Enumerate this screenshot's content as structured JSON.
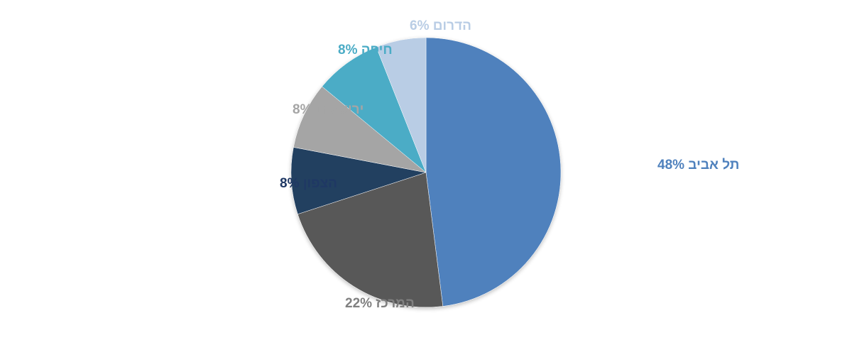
{
  "chart_data": {
    "type": "pie",
    "title": "",
    "slices": [
      {
        "label": "תל אביב",
        "percent_label": "48%",
        "value": 48,
        "color": "#4f81bd",
        "label_color": "#4f81bd"
      },
      {
        "label": "המרכז",
        "percent_label": "22%",
        "value": 22,
        "color": "#595959",
        "label_color": "#808080"
      },
      {
        "label": "הצפון",
        "percent_label": "8%",
        "value": 8,
        "color": "#243f60",
        "label_color": "#1f3864"
      },
      {
        "label": "ירושלים",
        "percent_label": "8%",
        "value": 8,
        "color": "#a5a5a5",
        "label_color": "#a5a5a5"
      },
      {
        "label": "חיפה",
        "percent_label": "8%",
        "value": 8,
        "color": "#4bacc6",
        "label_color": "#4bacc6"
      },
      {
        "label": "הדרום",
        "percent_label": "6%",
        "value": 6,
        "color": "#b9cde5",
        "label_color": "#b9cde5"
      }
    ],
    "start_angle_deg": 0,
    "direction": "clockwise",
    "legend": "none",
    "labels": "outside"
  }
}
